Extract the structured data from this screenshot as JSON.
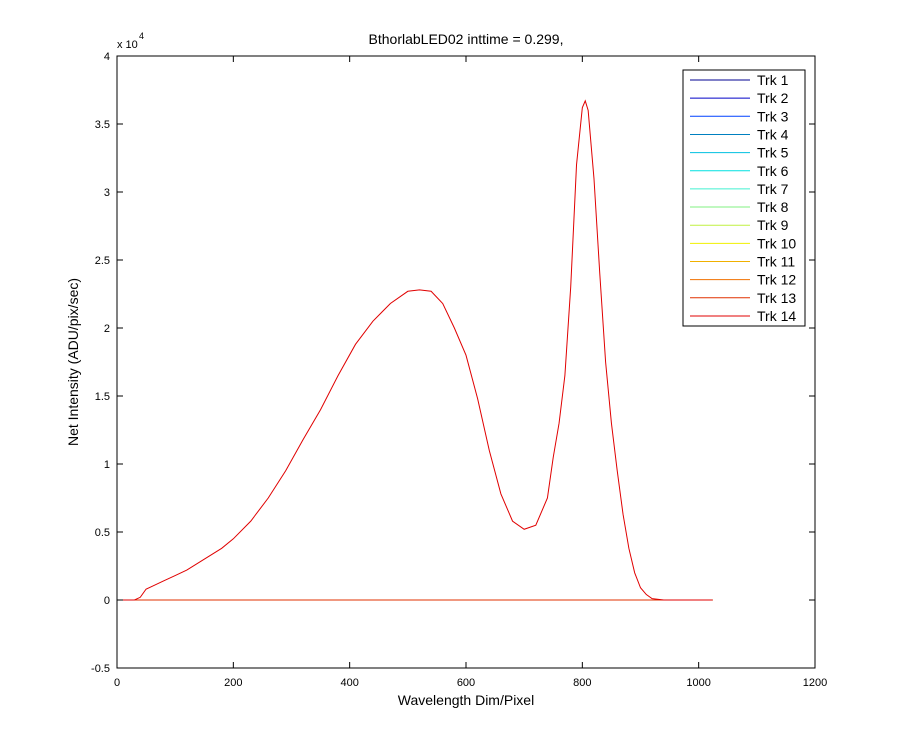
{
  "chart_data": {
    "type": "line",
    "title": "BthorlabLED02 inttime = 0.299,",
    "xlabel": "Wavelength Dim/Pixel",
    "ylabel": "Net Intensity (ADU/pix/sec)",
    "y_exponent_label": "x 10",
    "y_exponent_power": "4",
    "xlim": [
      0,
      1200
    ],
    "ylim": [
      -0.5,
      4
    ],
    "x_ticks": [
      0,
      200,
      400,
      600,
      800,
      1000,
      1200
    ],
    "y_ticks": [
      -0.5,
      0,
      0.5,
      1,
      1.5,
      2,
      2.5,
      3,
      3.5,
      4
    ],
    "y_tick_labels": [
      "-0.5",
      "0",
      "0.5",
      "1",
      "1.5",
      "2",
      "2.5",
      "3",
      "3.5",
      "4"
    ],
    "x_tick_labels": [
      "0",
      "200",
      "400",
      "600",
      "800",
      "1000",
      "1200"
    ],
    "grid": false,
    "legend_position": "top-right",
    "series": [
      {
        "name": "Trk 1",
        "color": "#000090",
        "x": [
          0,
          1024
        ],
        "y": [
          0,
          0
        ]
      },
      {
        "name": "Trk 2",
        "color": "#0000c8",
        "x": [
          0,
          1024
        ],
        "y": [
          0,
          0
        ]
      },
      {
        "name": "Trk 3",
        "color": "#0040ff",
        "x": [
          0,
          1024
        ],
        "y": [
          0,
          0
        ]
      },
      {
        "name": "Trk 4",
        "color": "#0080c0",
        "x": [
          0,
          1024
        ],
        "y": [
          0,
          0
        ]
      },
      {
        "name": "Trk 5",
        "color": "#00c0e0",
        "x": [
          0,
          1024
        ],
        "y": [
          0,
          0
        ]
      },
      {
        "name": "Trk 6",
        "color": "#00e0e0",
        "x": [
          0,
          1024
        ],
        "y": [
          0,
          0
        ]
      },
      {
        "name": "Trk 7",
        "color": "#40f0d0",
        "x": [
          0,
          1024
        ],
        "y": [
          0,
          0
        ]
      },
      {
        "name": "Trk 8",
        "color": "#80f080",
        "x": [
          0,
          1024
        ],
        "y": [
          0,
          0
        ]
      },
      {
        "name": "Trk 9",
        "color": "#c0f040",
        "x": [
          0,
          1024
        ],
        "y": [
          0,
          0
        ]
      },
      {
        "name": "Trk 10",
        "color": "#f0f000",
        "x": [
          0,
          1024
        ],
        "y": [
          0,
          0
        ]
      },
      {
        "name": "Trk 11",
        "color": "#f0b000",
        "x": [
          0,
          1024
        ],
        "y": [
          0,
          0
        ]
      },
      {
        "name": "Trk 12",
        "color": "#f07000",
        "x": [
          0,
          1024
        ],
        "y": [
          0,
          0
        ]
      },
      {
        "name": "Trk 13",
        "color": "#e03000",
        "x": [
          0,
          1024
        ],
        "y": [
          0,
          0
        ]
      },
      {
        "name": "Trk 14",
        "color": "#e00000",
        "x": [
          0,
          30,
          40,
          50,
          60,
          80,
          100,
          120,
          150,
          180,
          200,
          230,
          260,
          290,
          320,
          350,
          380,
          410,
          440,
          470,
          500,
          520,
          540,
          560,
          580,
          600,
          620,
          640,
          660,
          680,
          700,
          720,
          740,
          750,
          760,
          770,
          780,
          790,
          800,
          805,
          810,
          820,
          830,
          840,
          850,
          860,
          870,
          880,
          890,
          900,
          910,
          920,
          940,
          1024
        ],
        "y": [
          0,
          0,
          0.02,
          0.08,
          0.1,
          0.14,
          0.18,
          0.22,
          0.3,
          0.38,
          0.45,
          0.58,
          0.75,
          0.95,
          1.18,
          1.4,
          1.65,
          1.88,
          2.05,
          2.18,
          2.27,
          2.28,
          2.27,
          2.18,
          2.0,
          1.8,
          1.48,
          1.1,
          0.78,
          0.58,
          0.52,
          0.55,
          0.75,
          1.05,
          1.3,
          1.65,
          2.3,
          3.2,
          3.62,
          3.67,
          3.6,
          3.1,
          2.4,
          1.75,
          1.3,
          0.95,
          0.63,
          0.38,
          0.2,
          0.09,
          0.04,
          0.01,
          0,
          0
        ]
      }
    ]
  }
}
